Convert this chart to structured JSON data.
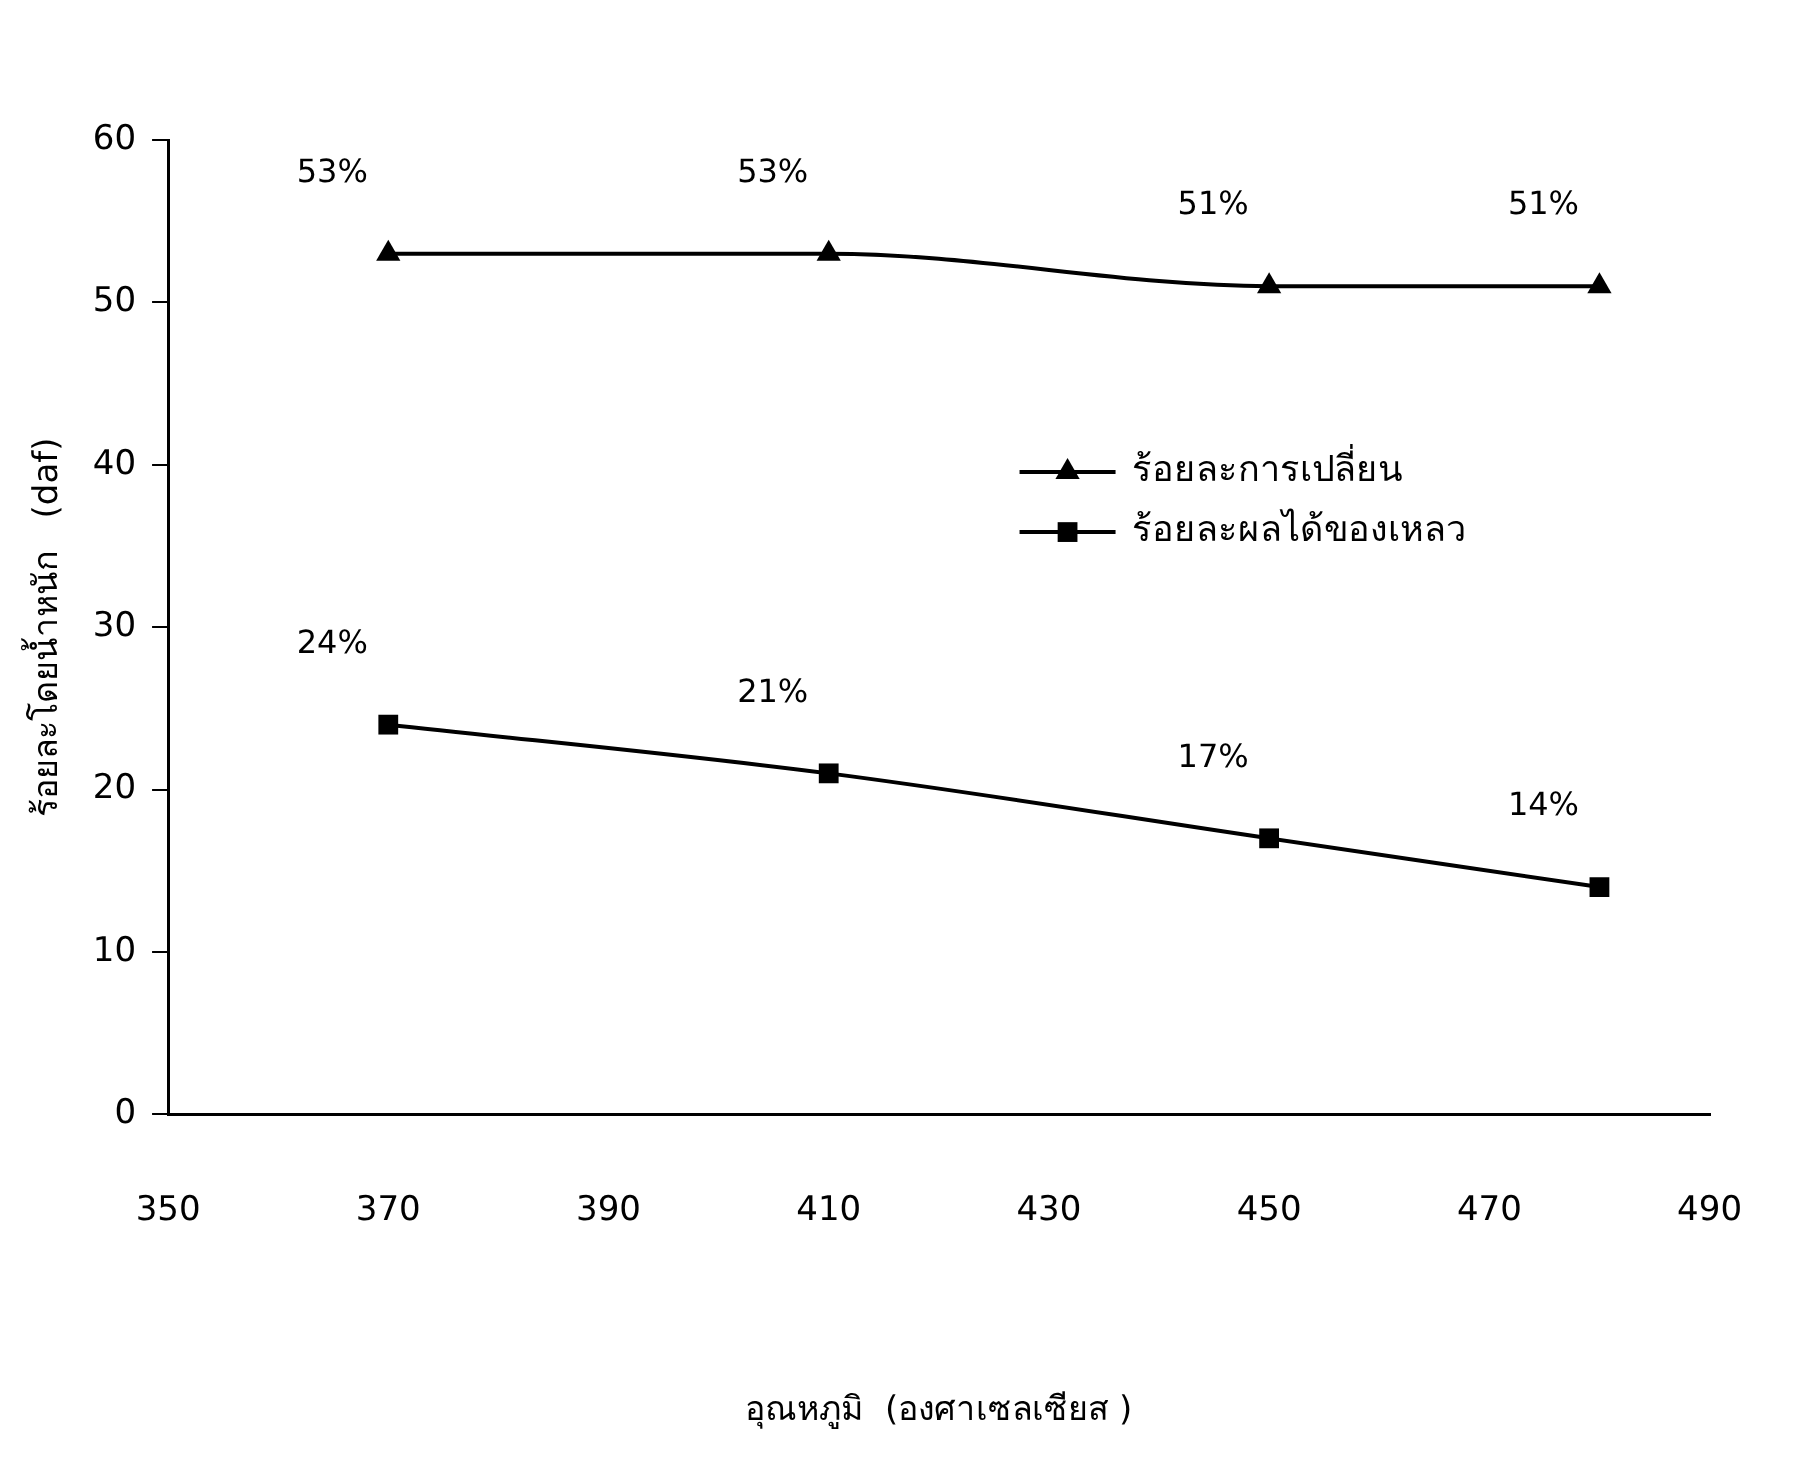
{
  "chart_data": {
    "type": "line",
    "xlabel": "อุณหภูมิ  (องศาเซลเซียส )",
    "ylabel": "ร้อยละโดยน้ำหนัก   (daf)",
    "x": [
      370,
      410,
      450,
      480
    ],
    "series": [
      {
        "name": "ร้อยละการเปลี่ยน",
        "color": "#000000",
        "marker": "triangle",
        "values": [
          53,
          53,
          51,
          51
        ],
        "value_labels": [
          "53%",
          "53%",
          "51%",
          "51%"
        ]
      },
      {
        "name": "ร้อยละผลได้ของเหลว",
        "color": "#000000",
        "marker": "square",
        "values": [
          24,
          21,
          17,
          14
        ],
        "value_labels": [
          "24%",
          "21%",
          "17%",
          "14%"
        ]
      }
    ],
    "xlim": [
      350,
      490
    ],
    "xticks": [
      350,
      370,
      390,
      410,
      430,
      450,
      470,
      490
    ],
    "ylim": [
      0,
      60
    ],
    "yticks": [
      0,
      10,
      20,
      30,
      40,
      50,
      60
    ],
    "grid": false,
    "legend": "center right",
    "line_style": "solid"
  }
}
